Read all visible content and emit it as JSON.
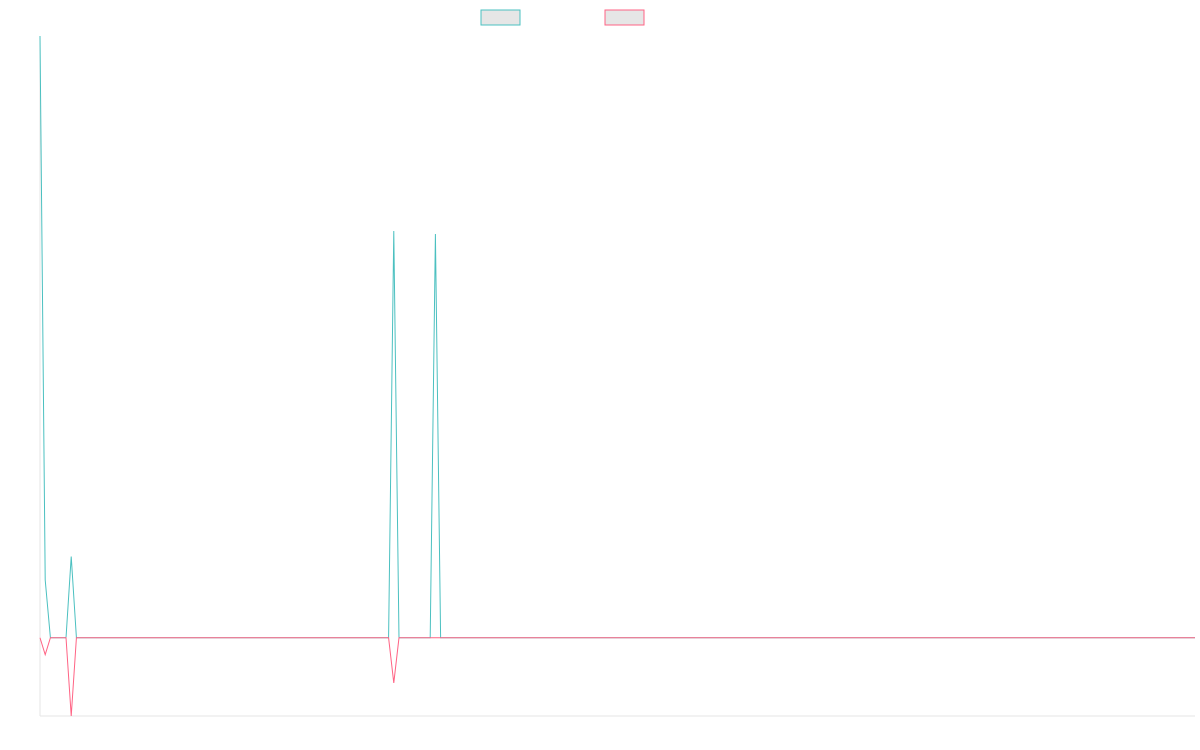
{
  "chart_data": {
    "type": "line",
    "xlim": [
      0,
      222
    ],
    "ylim": [
      -13,
      100
    ],
    "series": [
      {
        "color": "#4bc0c0",
        "x": [
          0,
          1,
          2,
          5,
          6,
          7,
          67,
          68,
          69,
          75,
          76,
          77,
          222
        ],
        "values": [
          100,
          9.6,
          0,
          0,
          13.5,
          0,
          0,
          67.6,
          0,
          0,
          67.1,
          0,
          0
        ]
      },
      {
        "color": "#ff6384",
        "x": [
          0,
          1,
          2,
          5,
          6,
          7,
          67,
          68,
          69,
          222
        ],
        "values": [
          0,
          -2.8,
          0,
          0,
          -13,
          0,
          0,
          -7.5,
          0,
          0
        ]
      }
    ]
  }
}
